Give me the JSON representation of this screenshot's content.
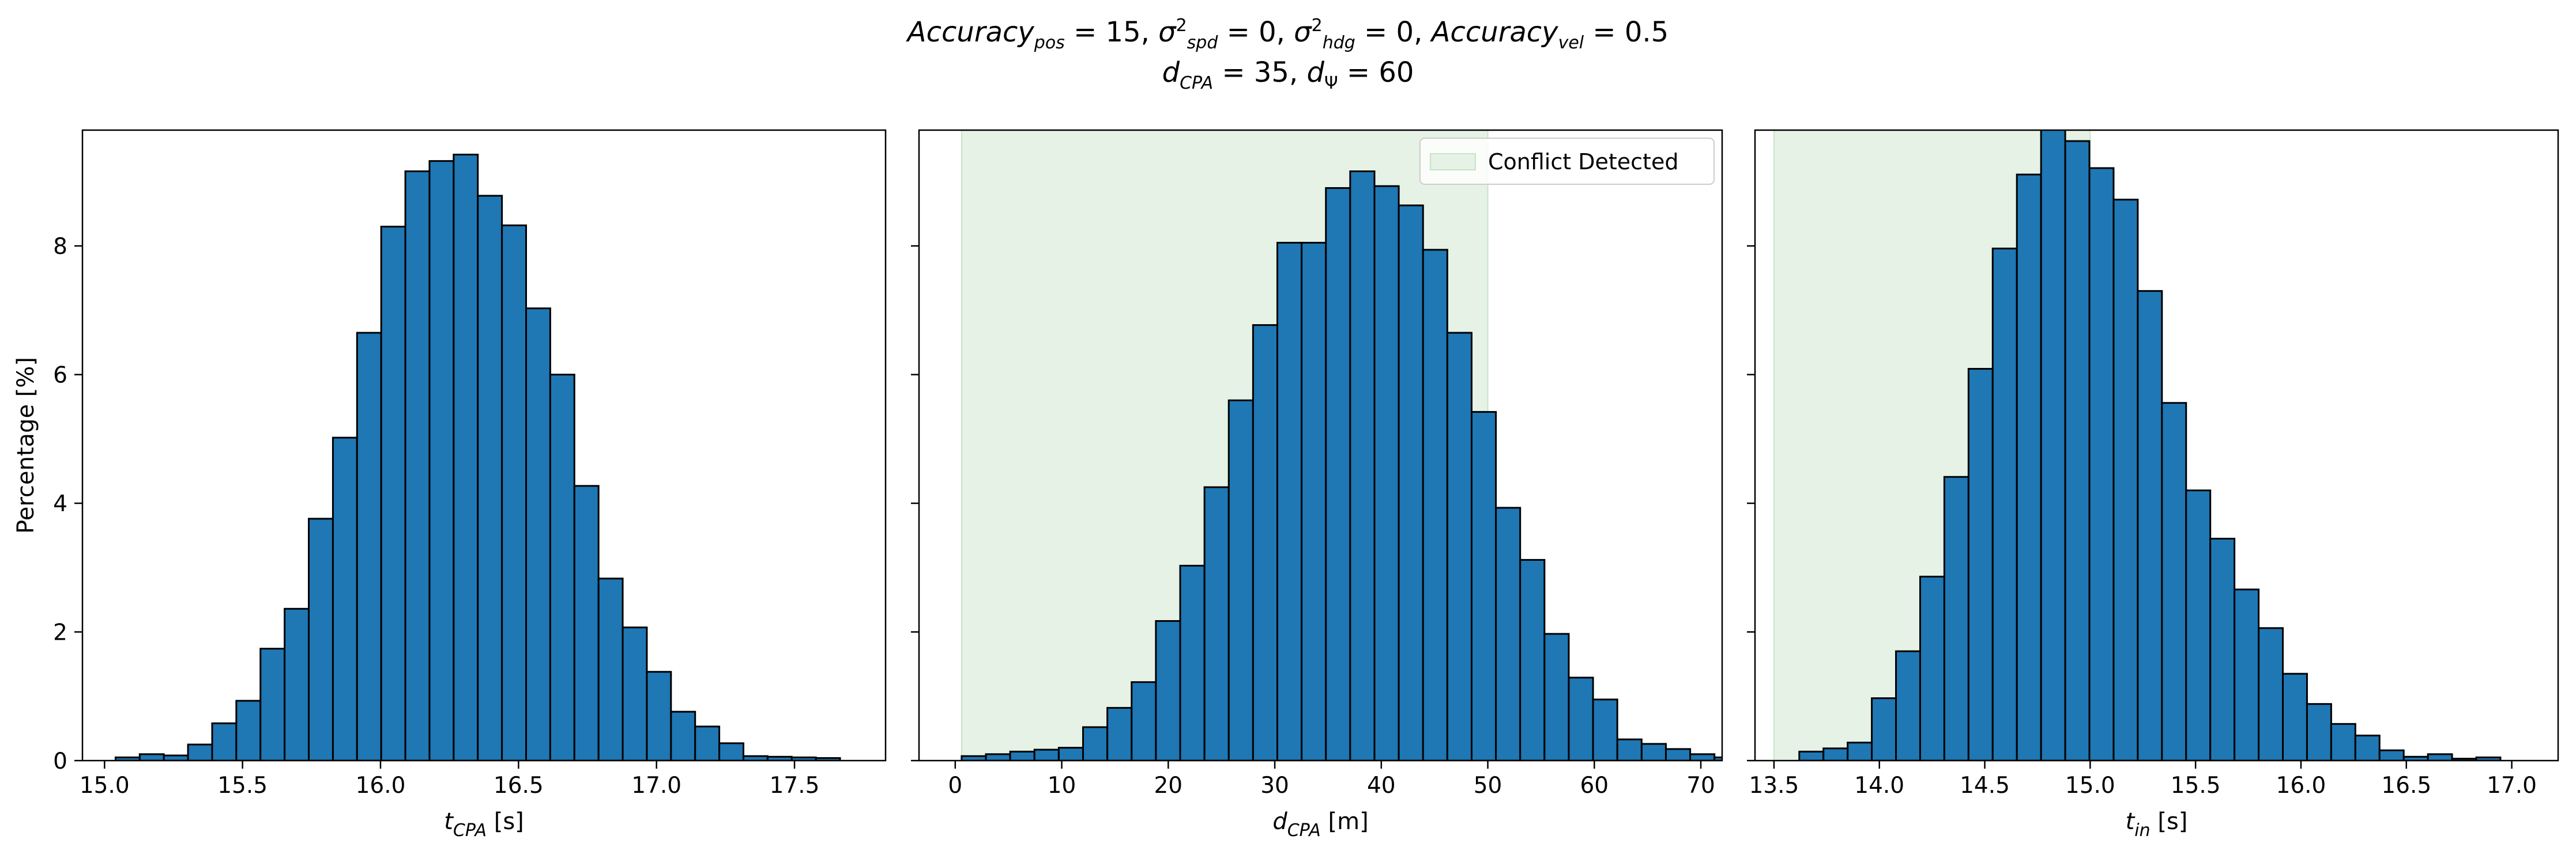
{
  "suptitle": {
    "line1": [
      {
        "t": "Accuracy",
        "i": true
      },
      {
        "t": "pos",
        "i": true,
        "sub": true
      },
      {
        "t": " = 15, "
      },
      {
        "t": "σ",
        "i": true
      },
      {
        "t": "2",
        "sup": true
      },
      {
        "t": "spd",
        "i": true,
        "sub": true
      },
      {
        "t": " = 0, "
      },
      {
        "t": "σ",
        "i": true
      },
      {
        "t": "2",
        "sup": true
      },
      {
        "t": "hdg",
        "i": true,
        "sub": true
      },
      {
        "t": " = 0, "
      },
      {
        "t": "Accuracy",
        "i": true
      },
      {
        "t": "vel",
        "i": true,
        "sub": true
      },
      {
        "t": " = 0.5"
      }
    ],
    "line2": [
      {
        "t": "d",
        "i": true
      },
      {
        "t": "CPA",
        "i": true,
        "sub": true
      },
      {
        "t": " = 35, "
      },
      {
        "t": "d",
        "i": true
      },
      {
        "t": "Ψ",
        "sub": true
      },
      {
        "t": " = 60"
      }
    ]
  },
  "colors": {
    "bar": "#1f77b4",
    "bar_edge": "#000000",
    "shade": "#e5f2e5",
    "shade_edge": "#c8e3c8"
  },
  "chart_data": [
    {
      "type": "bar",
      "xlabel": [
        {
          "t": "t",
          "i": true
        },
        {
          "t": "CPA",
          "i": true,
          "sub": true
        },
        {
          "t": " [s]"
        }
      ],
      "ylabel": "Percentage [%]",
      "xlim": [
        14.92,
        17.83
      ],
      "ylim": [
        0,
        9.8
      ],
      "xticks": [
        "15.0",
        "15.5",
        "16.0",
        "16.5",
        "17.0",
        "17.5"
      ],
      "yticks": [
        "0",
        "2",
        "4",
        "6",
        "8"
      ],
      "bin_start": 15.04,
      "bin_width": 0.0875,
      "values": [
        0.05,
        0.1,
        0.08,
        0.25,
        0.58,
        0.93,
        1.74,
        2.36,
        3.76,
        5.02,
        6.65,
        8.3,
        9.16,
        9.32,
        9.42,
        8.78,
        8.32,
        7.03,
        6.0,
        4.27,
        2.83,
        2.07,
        1.38,
        0.76,
        0.53,
        0.27,
        0.07,
        0.06,
        0.05,
        0.04
      ],
      "shade": null,
      "legend": null
    },
    {
      "type": "bar",
      "xlabel": [
        {
          "t": "d",
          "i": true
        },
        {
          "t": "CPA",
          "i": true,
          "sub": true
        },
        {
          "t": " [m]"
        }
      ],
      "ylabel": "",
      "xlim": [
        -3.4,
        72.0
      ],
      "ylim": [
        0,
        9.8
      ],
      "xticks": [
        "0",
        "10",
        "20",
        "30",
        "40",
        "50",
        "60",
        "70"
      ],
      "yticks": [
        "0",
        "2",
        "4",
        "6",
        "8"
      ],
      "bin_start": 0.6,
      "bin_width": 2.28,
      "values": [
        0.07,
        0.1,
        0.14,
        0.17,
        0.2,
        0.52,
        0.82,
        1.22,
        2.17,
        3.03,
        4.25,
        5.6,
        6.77,
        8.05,
        8.05,
        8.9,
        9.16,
        8.93,
        8.63,
        7.94,
        6.65,
        5.42,
        3.93,
        3.12,
        1.97,
        1.29,
        0.95,
        0.33,
        0.26,
        0.18,
        0.1,
        0.05
      ],
      "shade": [
        0.6,
        50.0
      ],
      "legend": {
        "label": "Conflict Detected",
        "position": "upper right"
      }
    },
    {
      "type": "bar",
      "xlabel": [
        {
          "t": "t",
          "i": true
        },
        {
          "t": "in",
          "i": true,
          "sub": true
        },
        {
          "t": " [s]"
        }
      ],
      "ylabel": "",
      "xlim": [
        13.41,
        17.22
      ],
      "ylim": [
        0,
        9.8
      ],
      "xticks": [
        "13.5",
        "14.0",
        "14.5",
        "15.0",
        "15.5",
        "16.0",
        "16.5",
        "17.0"
      ],
      "yticks": [
        "0",
        "2",
        "4",
        "6",
        "8"
      ],
      "bin_start": 13.62,
      "bin_width": 0.1147,
      "values": [
        0.14,
        0.19,
        0.28,
        0.97,
        1.7,
        2.86,
        4.41,
        6.09,
        7.96,
        9.11,
        9.85,
        9.63,
        9.21,
        8.72,
        7.3,
        5.56,
        4.2,
        3.45,
        2.66,
        2.06,
        1.35,
        0.88,
        0.57,
        0.39,
        0.16,
        0.06,
        0.1,
        0.03,
        0.05
      ],
      "shade": [
        13.5,
        15.0
      ],
      "legend": null
    }
  ]
}
